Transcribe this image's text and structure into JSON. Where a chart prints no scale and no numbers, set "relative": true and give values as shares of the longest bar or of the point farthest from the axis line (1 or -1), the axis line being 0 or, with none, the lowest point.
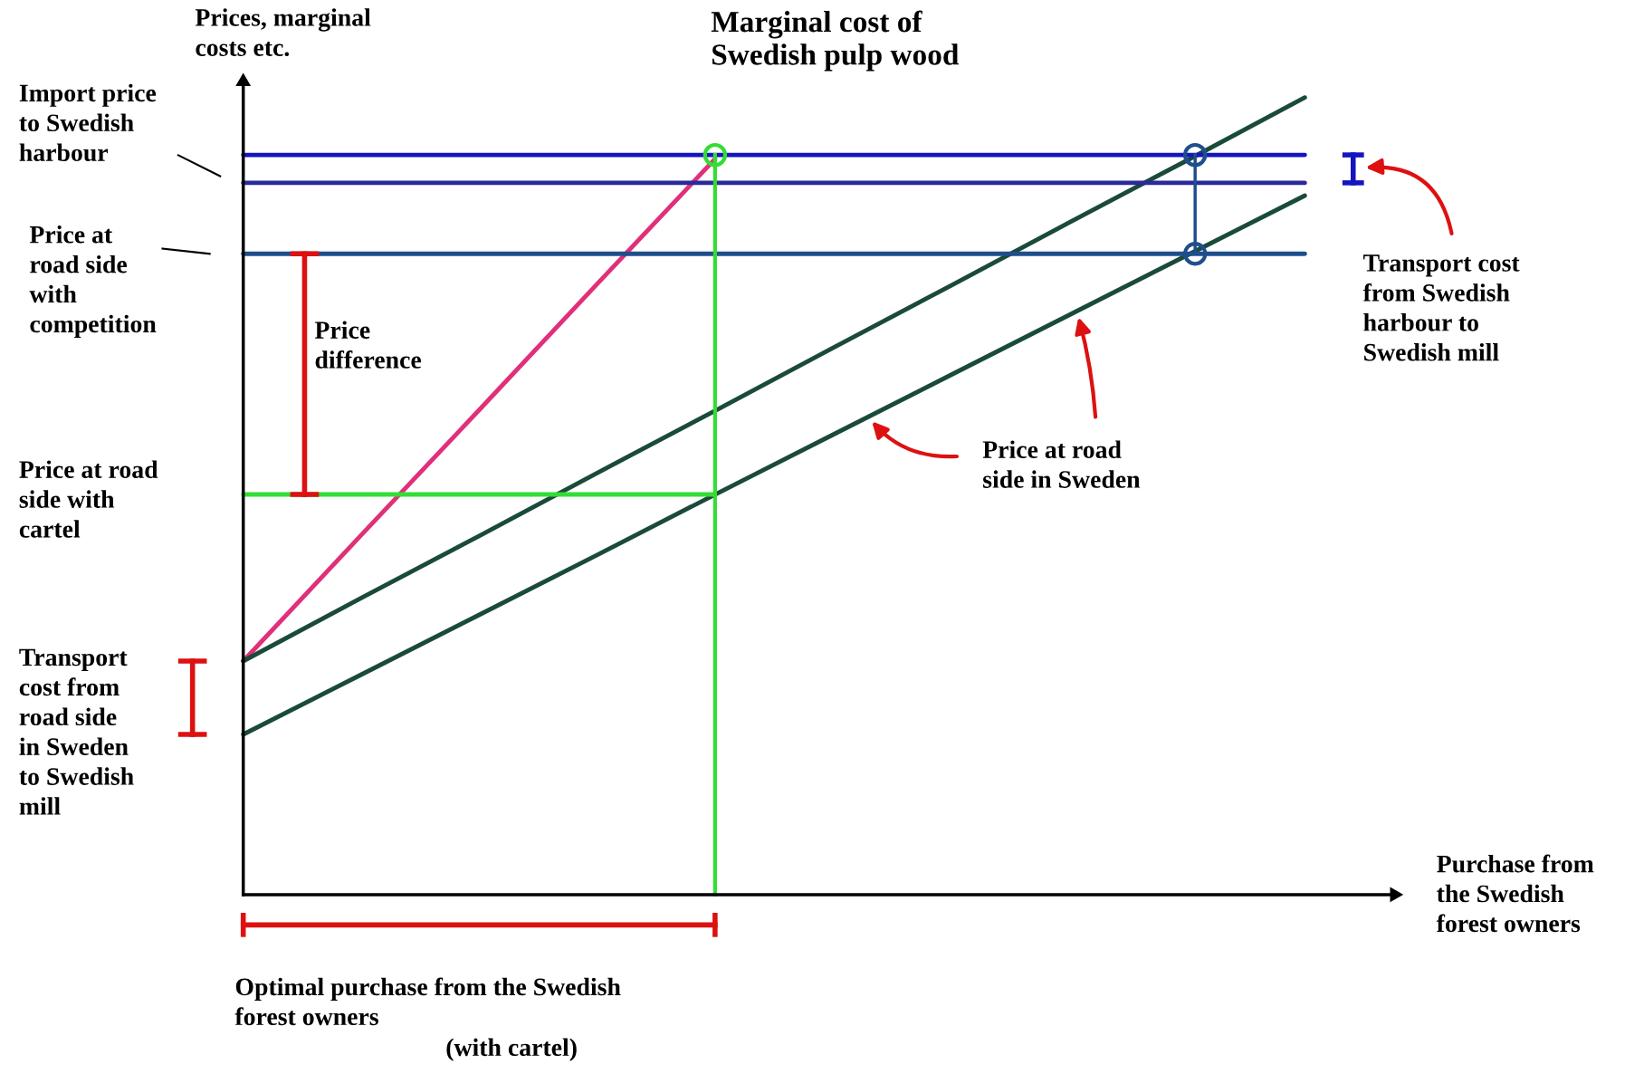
{
  "chart_data": {
    "type": "line",
    "relative": true,
    "ylabel": "Prices, marginal\ncosts etc.",
    "xlabel": "Purchase from\nthe Swedish\nforest owners",
    "categories": [
      null,
      null,
      null,
      null,
      null,
      null,
      null,
      null,
      null,
      null
    ],
    "series": [
      {
        "name": "Marginal cost of\nSwedish pulp wood",
        "color": "#e0307a",
        "values": [
          0.293,
          0.451,
          0.608,
          0.766,
          0.923,
          null,
          null,
          null,
          null,
          null
        ]
      },
      {
        "color": "#1a4a3a",
        "values": [
          0.293,
          0.372,
          0.45,
          0.529,
          0.607,
          0.686,
          0.764,
          0.843,
          0.921,
          1.0
        ]
      },
      {
        "name": "Price at road\nside in Sweden",
        "color": "#1a4a3a",
        "values": [
          0.201,
          0.276,
          0.351,
          0.426,
          0.502,
          0.577,
          0.652,
          0.727,
          0.802,
          0.877
        ]
      },
      {
        "color": "#1414c0",
        "values": [
          0.928,
          0.928,
          0.928,
          0.928,
          0.928,
          0.928,
          0.928,
          0.928,
          0.928,
          0.928
        ]
      },
      {
        "color": "#2a2a9a",
        "values": [
          0.893,
          0.893,
          0.893,
          0.893,
          0.893,
          0.893,
          0.893,
          0.893,
          0.893,
          0.893
        ]
      },
      {
        "color": "#1f4e8c",
        "values": [
          0.804,
          0.804,
          0.804,
          0.804,
          0.804,
          0.804,
          0.804,
          0.804,
          0.804,
          0.804
        ]
      },
      {
        "color": "#33dd33",
        "values": [
          0.502,
          0.502,
          0.502,
          0.502,
          0.502,
          null,
          null,
          null,
          null,
          null
        ]
      }
    ],
    "annotations": [
      "Import price\nto Swedish\nharbour",
      "Price at\nroad side\nwith\ncompetition",
      "Price\ndifference",
      "Price at road\nside with\ncartel",
      "Transport\ncost from\nroad side\nin Sweden\nto Swedish\nmill",
      "Transport cost\nfrom Swedish\nharbour to\nSwedish mill",
      "Optimal purchase from the Swedish\nforest owners",
      "(with cartel)"
    ]
  }
}
